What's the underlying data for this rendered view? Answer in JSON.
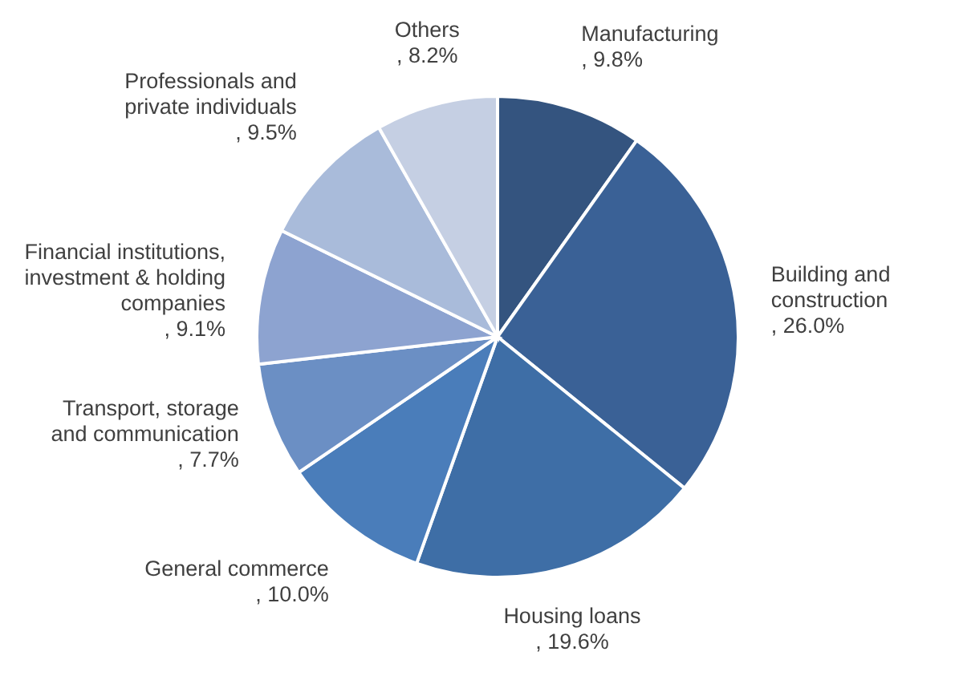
{
  "chart_data": {
    "type": "pie",
    "categories": [
      "Manufacturing",
      "Building and construction",
      "Housing loans",
      "General commerce",
      "Transport, storage and communication",
      "Financial institutions, investment & holding companies",
      "Professionals and private individuals",
      "Others"
    ],
    "values": [
      9.8,
      26.0,
      19.6,
      10.0,
      7.7,
      9.1,
      9.5,
      8.2
    ],
    "value_labels": [
      ", 9.8%",
      ", 26.0%",
      ", 19.6%",
      ", 10.0%",
      ", 7.7%",
      ", 9.1%",
      ", 9.5%",
      ", 8.2%"
    ],
    "colors": [
      "#34547f",
      "#3a6196",
      "#3e6ea6",
      "#4a7dba",
      "#6b8fc4",
      "#8da3d0",
      "#a9bbda",
      "#c5cfe3"
    ]
  }
}
